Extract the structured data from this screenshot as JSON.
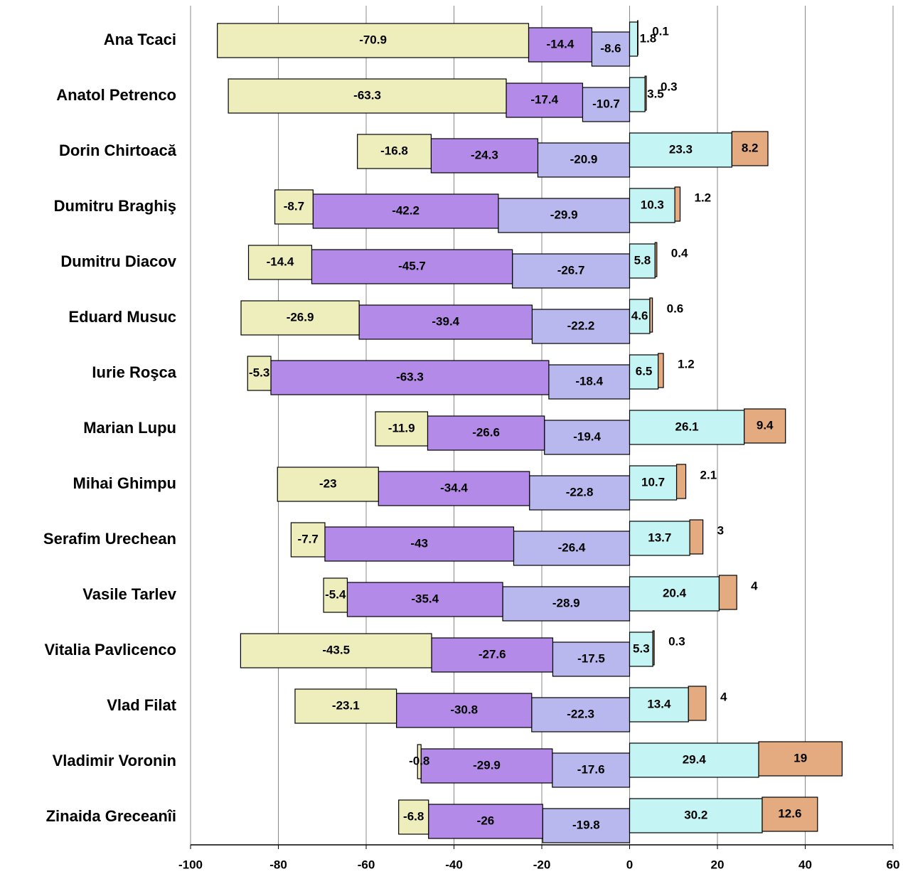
{
  "chart_data": {
    "type": "diverging_bar",
    "categories": [
      "Ana Tcaci",
      "Anatol Petrenco",
      "Dorin Chirtoacă",
      "Dumitru Braghiş",
      "Dumitru Diacov",
      "Eduard Musuc",
      "Iurie Roşca",
      "Marian Lupu",
      "Mihai Ghimpu",
      "Serafim Urechean",
      "Vasile Tarlev",
      "Vitalia Pavlicenco",
      "Vlad Filat",
      "Vladimir Voronin",
      "Zinaida Greceanîi"
    ],
    "series": [
      {
        "color": "#b8b8ee",
        "values": [
          -8.6,
          -10.7,
          -20.9,
          -29.9,
          -26.7,
          -22.2,
          -18.4,
          -19.4,
          -22.8,
          -26.4,
          -28.9,
          -17.5,
          -22.3,
          -17.6,
          -19.8
        ]
      },
      {
        "color": "#b48ae8",
        "values": [
          -14.4,
          -17.4,
          -24.3,
          -42.2,
          -45.7,
          -39.4,
          -63.3,
          -26.6,
          -34.4,
          -43,
          -35.4,
          -27.6,
          -30.8,
          -29.9,
          -26
        ]
      },
      {
        "color": "#eeeebc",
        "values": [
          -70.9,
          -63.3,
          -16.8,
          -8.7,
          -14.4,
          -26.9,
          -5.3,
          -11.9,
          -23,
          -7.7,
          -5.4,
          -43.5,
          -23.1,
          -0.8,
          -6.8
        ]
      },
      {
        "color": "#c4f4f4",
        "values": [
          1.8,
          3.5,
          23.3,
          10.3,
          5.8,
          4.6,
          6.5,
          26.1,
          10.7,
          13.7,
          20.4,
          5.3,
          13.4,
          29.4,
          30.2
        ]
      },
      {
        "color": "#e4aa80",
        "values": [
          0.1,
          0.3,
          8.2,
          1.2,
          0.4,
          0.6,
          1.2,
          9.4,
          2.1,
          3,
          4,
          0.3,
          4,
          19,
          12.6
        ]
      }
    ],
    "xlim": [
      -100,
      60
    ],
    "xticks": [
      -100,
      -80,
      -60,
      -40,
      -20,
      0,
      20,
      40,
      60
    ],
    "grid": true
  }
}
